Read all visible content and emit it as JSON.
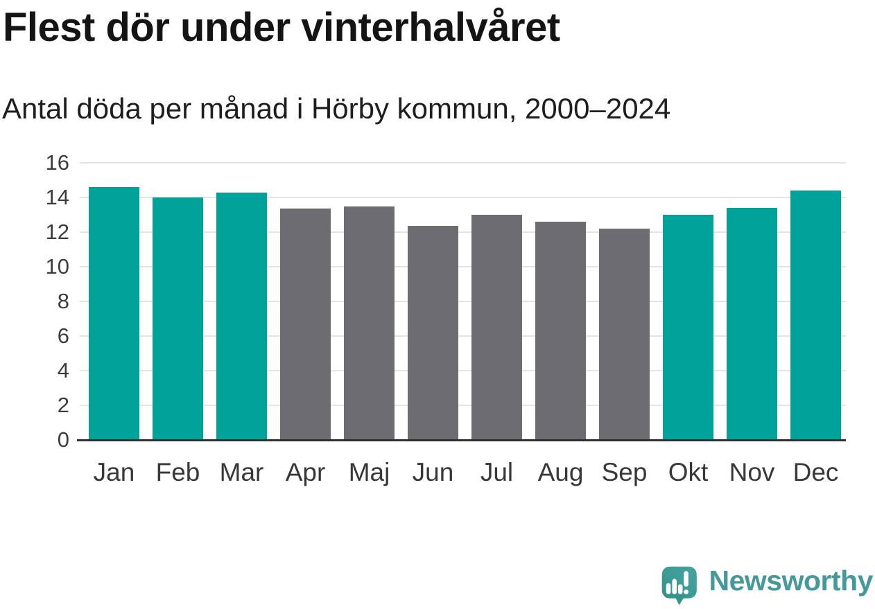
{
  "header": {
    "title": "Flest dör under vinterhalvåret",
    "subtitle": "Antal döda per månad i Hörby kommun, 2000–2024"
  },
  "chart_data": {
    "type": "bar",
    "title": "Flest dör under vinterhalvåret",
    "subtitle": "Antal döda per månad i Hörby kommun, 2000–2024",
    "categories": [
      "Jan",
      "Feb",
      "Mar",
      "Apr",
      "Maj",
      "Jun",
      "Jul",
      "Aug",
      "Sep",
      "Okt",
      "Nov",
      "Dec"
    ],
    "values": [
      14.6,
      14.0,
      14.3,
      13.35,
      13.5,
      12.35,
      13.0,
      12.6,
      12.2,
      13.0,
      13.4,
      14.4
    ],
    "winter_highlight": [
      true,
      true,
      true,
      false,
      false,
      false,
      false,
      false,
      false,
      true,
      true,
      true
    ],
    "xlabel": "",
    "ylabel": "",
    "ylim": [
      0,
      16
    ],
    "yticks": [
      0,
      2,
      4,
      6,
      8,
      10,
      12,
      14,
      16
    ],
    "grid": "horizontal",
    "legend": "none",
    "colors": {
      "winter_bar": "#00a29a",
      "summer_bar": "#6c6c71",
      "gridline": "#e3e3e3",
      "axis_line": "#303030"
    }
  },
  "branding": {
    "logo_text": "Newsworthy",
    "logo_color": "#45999a",
    "logo_icon": "newsworthy-speech-bubble-bar-chart-icon"
  }
}
